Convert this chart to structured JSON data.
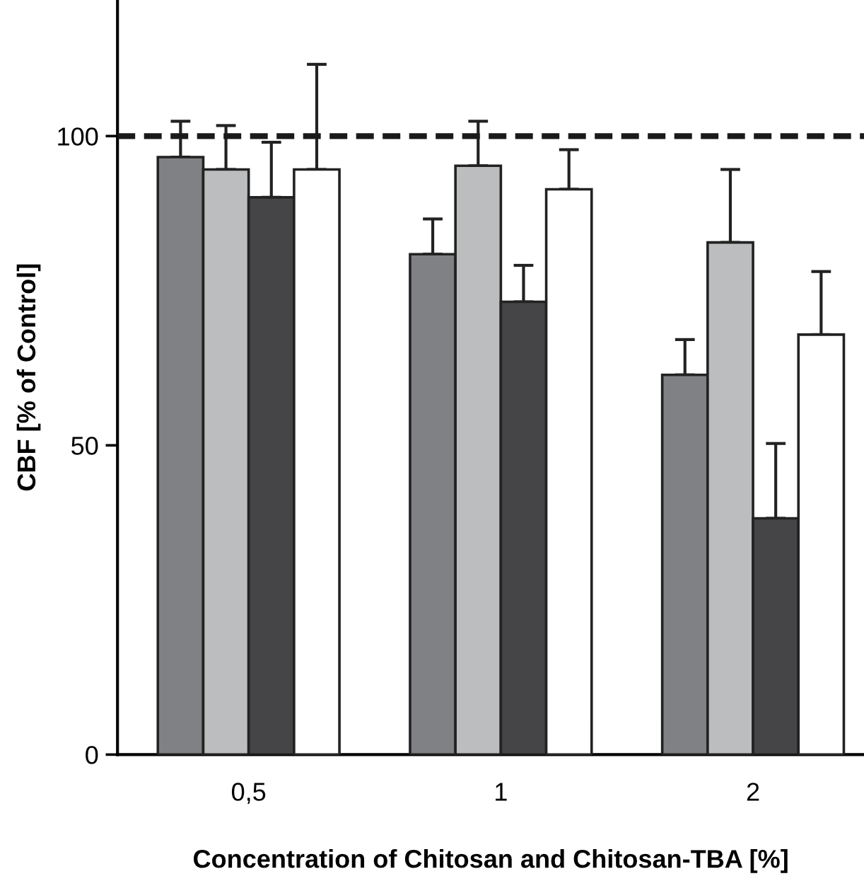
{
  "chart_data": {
    "type": "bar",
    "xlabel": "Concentration of Chitosan and Chitosan-TBA [%]",
    "ylabel": "CBF [% of Control]",
    "categories": [
      "0,5",
      "1",
      "2"
    ],
    "series": [
      {
        "color": "#808184",
        "values": [
          96.6,
          80.9,
          61.4
        ],
        "errors": [
          [
            96.6,
            102.4
          ],
          [
            80.9,
            86.6
          ],
          [
            61.4,
            67.1
          ]
        ]
      },
      {
        "color": "#bcbdbf",
        "values": [
          94.6,
          95.2,
          82.8
        ],
        "errors": [
          [
            94.6,
            101.7
          ],
          [
            95.2,
            102.4
          ],
          [
            82.8,
            94.6
          ]
        ]
      },
      {
        "color": "#454547",
        "values": [
          90.1,
          73.2,
          38.2
        ],
        "errors": [
          [
            90.1,
            99.0
          ],
          [
            73.2,
            79.1
          ],
          [
            38.2,
            50.3
          ]
        ]
      },
      {
        "color": "#ffffff",
        "values": [
          94.6,
          91.4,
          67.9
        ],
        "errors": [
          [
            94.6,
            111.6
          ],
          [
            91.4,
            97.8
          ],
          [
            67.9,
            78.1
          ]
        ]
      }
    ],
    "ylim": [
      0,
      122
    ],
    "yticks": [
      0,
      50,
      100
    ],
    "ref_lines": [
      {
        "axis": "y",
        "value": 100,
        "line_style": "dashed",
        "color": "#1a1a1a"
      }
    ],
    "grid": false,
    "legend": false
  }
}
